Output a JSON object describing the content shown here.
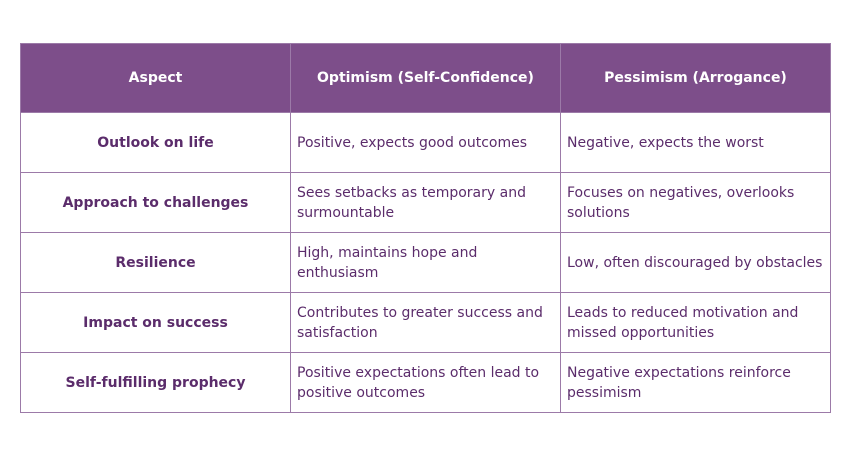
{
  "table": {
    "headers": [
      "Aspect",
      "Optimism (Self-Confidence)",
      "Pessimism (Arrogance)"
    ],
    "rows": [
      [
        "Outlook on life",
        "Positive, expects good outcomes",
        "Negative, expects the worst"
      ],
      [
        "Approach to challenges",
        "Sees setbacks as temporary and surmountable",
        "Focuses on negatives, overlooks solutions"
      ],
      [
        "Resilience",
        "High, maintains hope and enthusiasm",
        "Low, often discouraged by obstacles"
      ],
      [
        "Impact on success",
        "Contributes to greater success and satisfaction",
        "Leads to reduced motivation and missed opportunities"
      ],
      [
        "Self-fulfilling prophecy",
        "Positive expectations often lead to positive outcomes",
        "Negative expectations reinforce pessimism"
      ]
    ]
  },
  "colors": {
    "header_bg": "#7d4e8a",
    "text": "#5b2c6b",
    "border": "#9c7aa8"
  }
}
